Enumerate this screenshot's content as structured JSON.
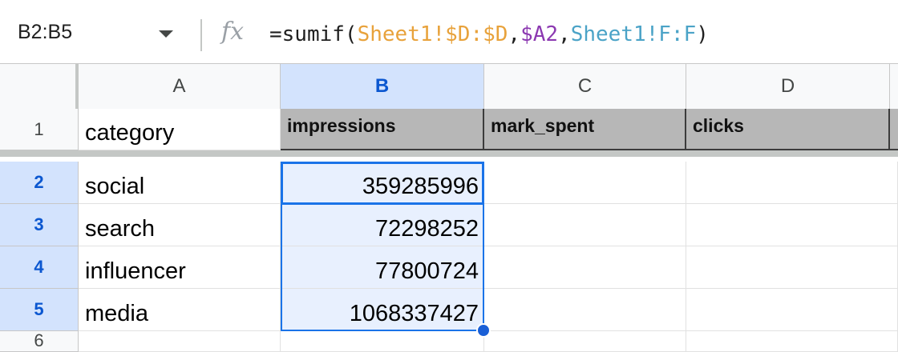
{
  "formula_bar": {
    "name_box": "B2:B5",
    "fx_label": "fx",
    "formula": {
      "prefix": "=sumif(",
      "range1": "Sheet1!$D:$D",
      "comma1": ",",
      "criteria": "$A2",
      "comma2": ",",
      "range2": "Sheet1!F:F",
      "suffix": ")"
    }
  },
  "grid": {
    "columns": [
      "A",
      "B",
      "C",
      "D"
    ],
    "selected_column": "B",
    "rows": [
      "1",
      "2",
      "3",
      "4",
      "5",
      "6"
    ],
    "selected_rows": [
      "2",
      "3",
      "4",
      "5"
    ],
    "row1": {
      "a": "category",
      "b": "impressions",
      "c": "mark_spent",
      "d": "clicks"
    },
    "data": [
      {
        "category": "social",
        "impressions": "359285996"
      },
      {
        "category": "search",
        "impressions": "72298252"
      },
      {
        "category": "influencer",
        "impressions": "77800724"
      },
      {
        "category": "media",
        "impressions": "1068337427"
      }
    ]
  },
  "colors": {
    "selection_accent": "#1a73e8",
    "header_fill": "#b7b7b7",
    "formula_range_orange": "#e8a23b",
    "formula_ref_purple": "#8c39b1",
    "formula_range_teal": "#4ba3c7"
  }
}
